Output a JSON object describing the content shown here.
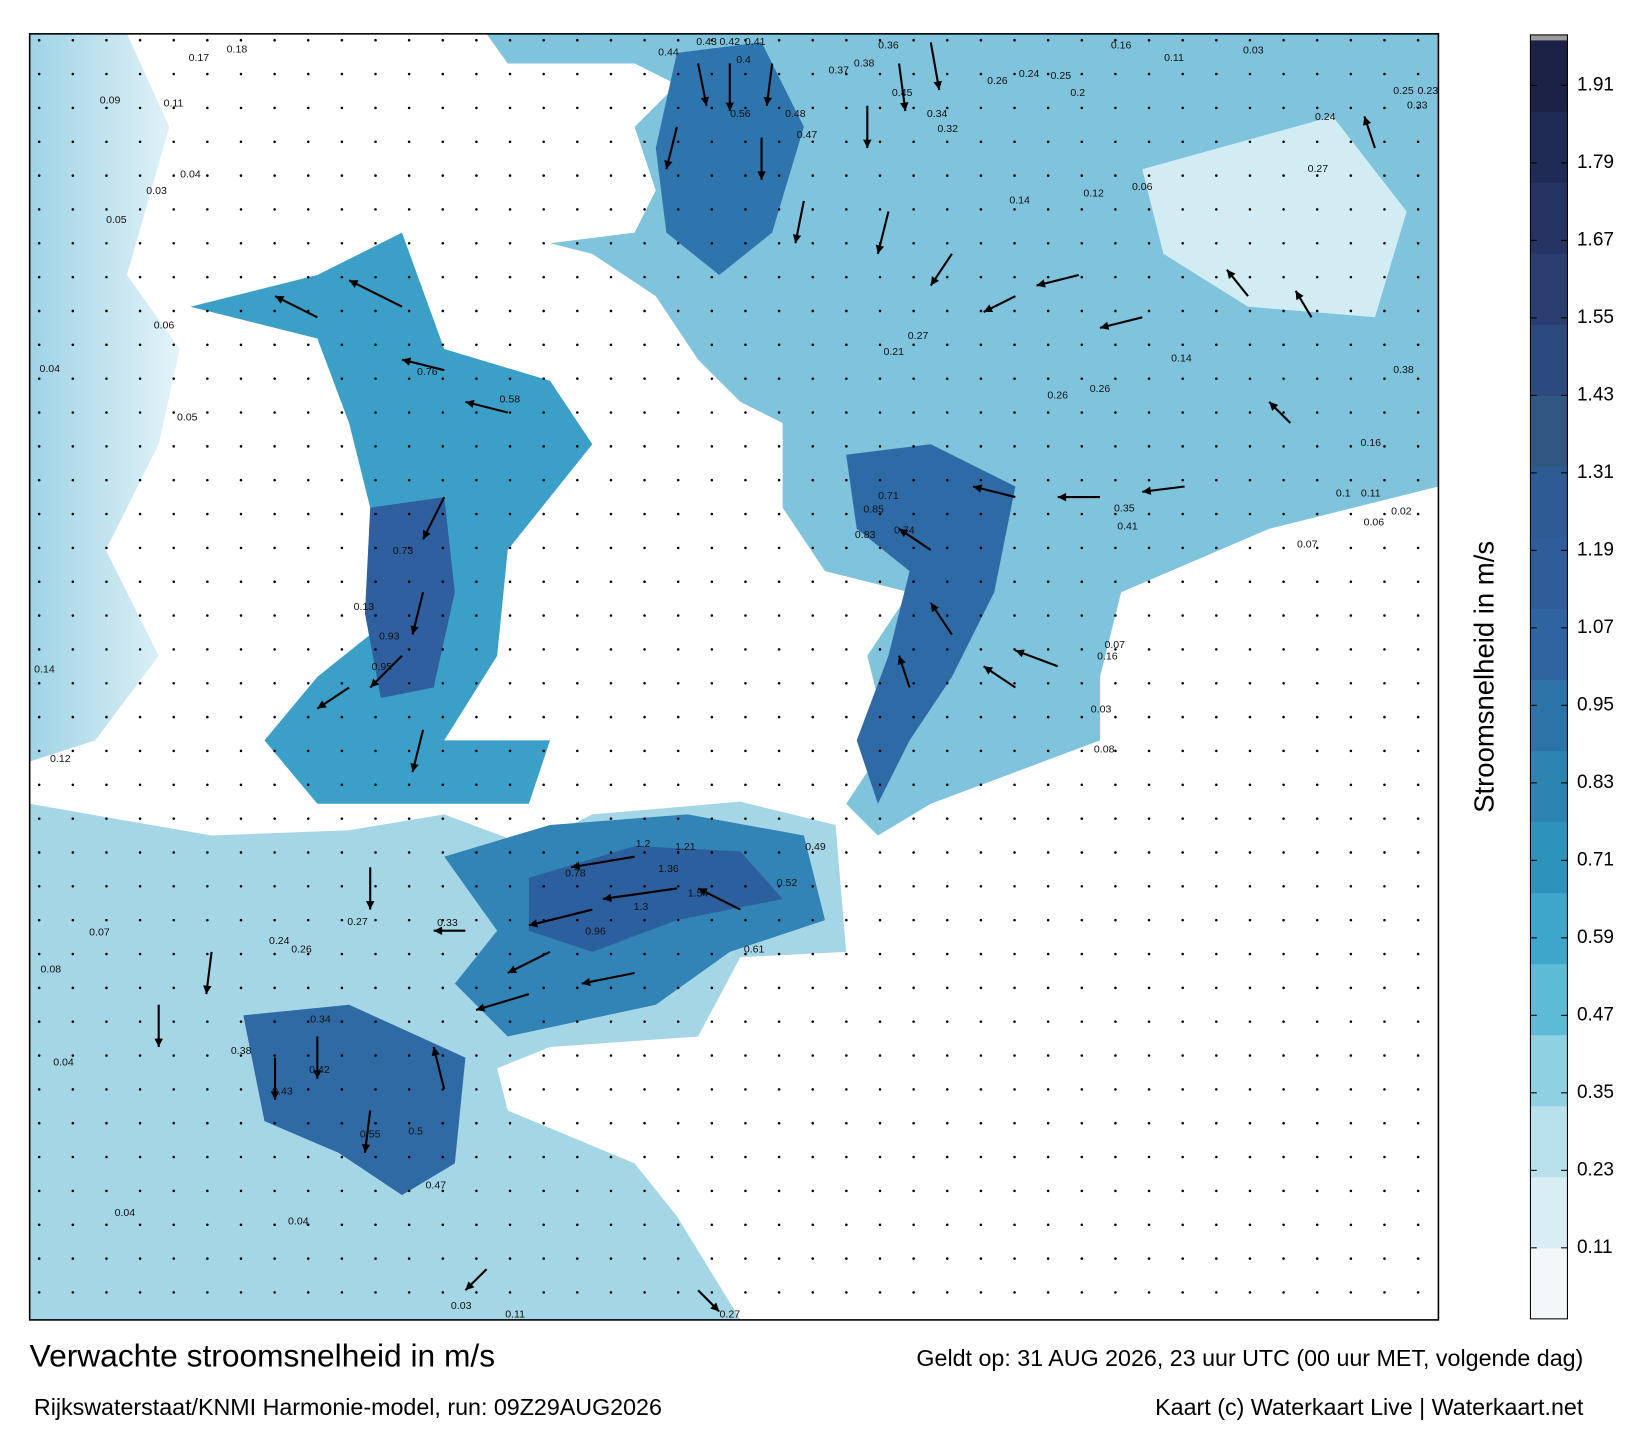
{
  "map": {
    "title": "Verwachte stroomsnelheid in m/s",
    "valid_time": "Geldt op: 31 AUG 2026, 23 uur UTC (00 uur MET, volgende dag)",
    "source": "Rijkswaterstaat/KNMI Harmonie-model, run: 09Z29AUG2026",
    "credit": "Kaart (c) Waterkaart Live | Waterkaart.net",
    "speed_labels": [
      0.43,
      0.42,
      0.41,
      0.4,
      0.36,
      0.16,
      0.11,
      0.03,
      0.44,
      0.37,
      0.38,
      0.45,
      0.56,
      0.48,
      0.47,
      0.34,
      0.32,
      0.26,
      0.24,
      0.25,
      0.2,
      0.09,
      0.11,
      0.17,
      0.18,
      0.05,
      0.03,
      0.04,
      0.06,
      0.04,
      0.05,
      0.13,
      0.95,
      0.93,
      0.73,
      0.76,
      0.58,
      0.74,
      0.83,
      0.85,
      0.71,
      1.2,
      1.21,
      1.36,
      1.54,
      1.3,
      0.96,
      0.78,
      0.52,
      0.49,
      0.61,
      0.33,
      0.27,
      0.24,
      0.26,
      0.38,
      0.34,
      0.42,
      0.43,
      0.55,
      0.5,
      0.47,
      0.04,
      0.04,
      0.03,
      0.11,
      0.27,
      0.04,
      0.08,
      0.07,
      0.14,
      0.12,
      0.06,
      0.02,
      0.07,
      0.08,
      0.03,
      0.16,
      0.07,
      0.35,
      0.41,
      0.1,
      0.11,
      0.33,
      0.23,
      0.25,
      0.24,
      0.27,
      0.16,
      0.38,
      0.14,
      0.26,
      0.26,
      0.21,
      0.27,
      0.14,
      0.12,
      0.06
    ]
  },
  "colorbar": {
    "label": "Stroomsnelheid in m/s",
    "lim": [
      0,
      1.98
    ],
    "ticks": [
      0.11,
      0.23,
      0.35,
      0.47,
      0.59,
      0.71,
      0.83,
      0.95,
      1.07,
      1.19,
      1.31,
      1.43,
      1.55,
      1.67,
      1.79,
      1.91
    ],
    "colors": [
      "#f2f8fa",
      "#d9eef4",
      "#b8e1ec",
      "#8fd0e2",
      "#5ebbd7",
      "#3ea6ca",
      "#2e93bb",
      "#2b84b0",
      "#2c73a8",
      "#2e65a1",
      "#2f5d99",
      "#2e5b93",
      "#2f5781",
      "#2d4a7e",
      "#2a3e72",
      "#263463",
      "#1f2a55",
      "#1b2245"
    ]
  }
}
